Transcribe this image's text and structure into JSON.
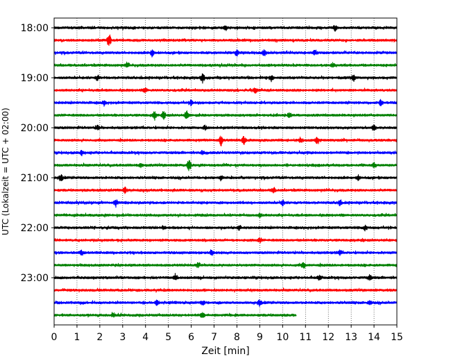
{
  "chart_data": {
    "type": "line",
    "title": "",
    "xlabel": "Zeit  [min]",
    "ylabel": "UTC (Lokalzeit = UTC + 02:00)",
    "xlim": [
      0,
      15
    ],
    "x_ticks": [
      "0",
      "1",
      "2",
      "3",
      "4",
      "5",
      "6",
      "7",
      "8",
      "9",
      "10",
      "11",
      "12",
      "13",
      "14",
      "15"
    ],
    "y_ticks": [
      "18:00",
      "19:00",
      "20:00",
      "21:00",
      "22:00",
      "23:00"
    ],
    "grid": "vertical-dotted",
    "colors": [
      "#000000",
      "#ff0000",
      "#0000ff",
      "#008000"
    ],
    "series": [
      {
        "start": "18:00",
        "color": "#000000",
        "end_min": 15,
        "events": [
          [
            7.5,
            1.0
          ],
          [
            12.3,
            0.9
          ]
        ]
      },
      {
        "start": "18:15",
        "color": "#ff0000",
        "end_min": 15,
        "events": [
          [
            2.4,
            3.2
          ]
        ]
      },
      {
        "start": "18:30",
        "color": "#0000ff",
        "end_min": 15,
        "events": [
          [
            4.3,
            1.8
          ],
          [
            9.2,
            1.4
          ],
          [
            8.0,
            1.3
          ],
          [
            11.4,
            1.0
          ]
        ]
      },
      {
        "start": "18:45",
        "color": "#008000",
        "end_min": 15,
        "events": [
          [
            12.2,
            1.0
          ],
          [
            3.2,
            0.9
          ]
        ]
      },
      {
        "start": "19:00",
        "color": "#000000",
        "end_min": 15,
        "events": [
          [
            6.5,
            2.2
          ],
          [
            9.5,
            1.2
          ],
          [
            13.1,
            1.4
          ],
          [
            1.9,
            1.0
          ]
        ]
      },
      {
        "start": "19:15",
        "color": "#ff0000",
        "end_min": 15,
        "events": [
          [
            4.0,
            1.0
          ],
          [
            8.8,
            1.0
          ]
        ]
      },
      {
        "start": "19:30",
        "color": "#0000ff",
        "end_min": 15,
        "events": [
          [
            14.3,
            1.5
          ],
          [
            2.2,
            1.0
          ],
          [
            6.0,
            1.0
          ]
        ]
      },
      {
        "start": "19:45",
        "color": "#008000",
        "end_min": 15,
        "events": [
          [
            4.4,
            1.8
          ],
          [
            5.8,
            2.0
          ],
          [
            4.8,
            1.4
          ],
          [
            10.3,
            1.1
          ]
        ]
      },
      {
        "start": "20:00",
        "color": "#000000",
        "end_min": 15,
        "events": [
          [
            14.0,
            1.4
          ],
          [
            6.6,
            1.0
          ],
          [
            1.9,
            1.0
          ]
        ]
      },
      {
        "start": "20:15",
        "color": "#ff0000",
        "end_min": 15,
        "events": [
          [
            7.3,
            2.3
          ],
          [
            8.3,
            1.8
          ],
          [
            11.5,
            1.4
          ],
          [
            10.8,
            1.2
          ]
        ]
      },
      {
        "start": "20:30",
        "color": "#0000ff",
        "end_min": 15,
        "events": [
          [
            1.2,
            1.0
          ],
          [
            6.5,
            1.0
          ]
        ]
      },
      {
        "start": "20:45",
        "color": "#008000",
        "end_min": 15,
        "events": [
          [
            5.9,
            2.4
          ],
          [
            14.0,
            1.2
          ],
          [
            3.8,
            1.0
          ]
        ]
      },
      {
        "start": "21:00",
        "color": "#000000",
        "end_min": 15,
        "events": [
          [
            0.3,
            1.6
          ],
          [
            7.3,
            1.2
          ],
          [
            13.3,
            1.0
          ]
        ]
      },
      {
        "start": "21:15",
        "color": "#ff0000",
        "end_min": 15,
        "events": [
          [
            3.1,
            1.2
          ],
          [
            9.6,
            1.1
          ]
        ]
      },
      {
        "start": "21:30",
        "color": "#0000ff",
        "end_min": 15,
        "events": [
          [
            2.7,
            1.8
          ],
          [
            10.0,
            1.2
          ],
          [
            12.5,
            1.0
          ]
        ]
      },
      {
        "start": "21:45",
        "color": "#008000",
        "end_min": 15,
        "events": [
          [
            9.0,
            1.0
          ]
        ]
      },
      {
        "start": "22:00",
        "color": "#000000",
        "end_min": 15,
        "events": [
          [
            8.1,
            1.0
          ],
          [
            13.6,
            1.2
          ],
          [
            4.8,
            1.0
          ]
        ]
      },
      {
        "start": "22:15",
        "color": "#ff0000",
        "end_min": 15,
        "events": [
          [
            9.0,
            1.0
          ]
        ]
      },
      {
        "start": "22:30",
        "color": "#0000ff",
        "end_min": 15,
        "events": [
          [
            1.2,
            1.0
          ],
          [
            6.9,
            1.0
          ],
          [
            12.5,
            1.0
          ]
        ]
      },
      {
        "start": "22:45",
        "color": "#008000",
        "end_min": 15,
        "events": [
          [
            6.3,
            1.2
          ],
          [
            10.9,
            1.5
          ]
        ]
      },
      {
        "start": "23:00",
        "color": "#000000",
        "end_min": 15,
        "events": [
          [
            13.8,
            1.2
          ],
          [
            5.3,
            1.0
          ],
          [
            11.6,
            1.0
          ]
        ]
      },
      {
        "start": "23:15",
        "color": "#ff0000",
        "end_min": 15,
        "events": []
      },
      {
        "start": "23:30",
        "color": "#0000ff",
        "end_min": 15,
        "events": [
          [
            4.5,
            1.0
          ],
          [
            9.0,
            1.4
          ],
          [
            13.8,
            1.0
          ],
          [
            6.5,
            1.0
          ]
        ]
      },
      {
        "start": "23:45",
        "color": "#008000",
        "end_min": 10.6,
        "events": [
          [
            2.6,
            1.0
          ],
          [
            6.5,
            1.0
          ]
        ]
      }
    ]
  }
}
